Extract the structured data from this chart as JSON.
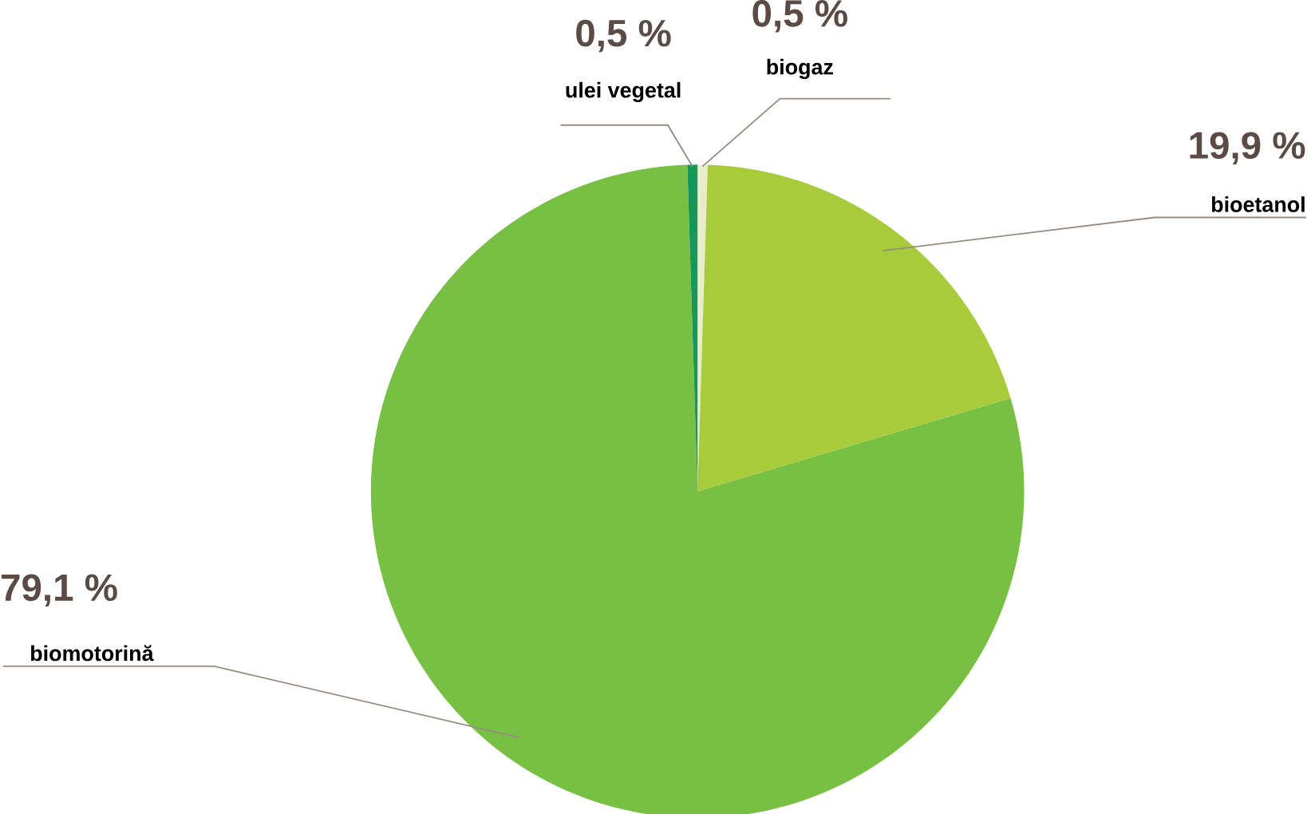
{
  "chart_data": {
    "type": "pie",
    "categories": [
      "biogaz",
      "bioetanol",
      "biomotorină",
      "ulei vegetal"
    ],
    "values": [
      0.5,
      19.9,
      79.1,
      0.5
    ],
    "colors": [
      "#e6edc8",
      "#a8cb3c",
      "#78c043",
      "#17985a"
    ],
    "value_labels": [
      "0,5 %",
      "19,9 %",
      "79,1 %",
      "0,5 %"
    ]
  }
}
